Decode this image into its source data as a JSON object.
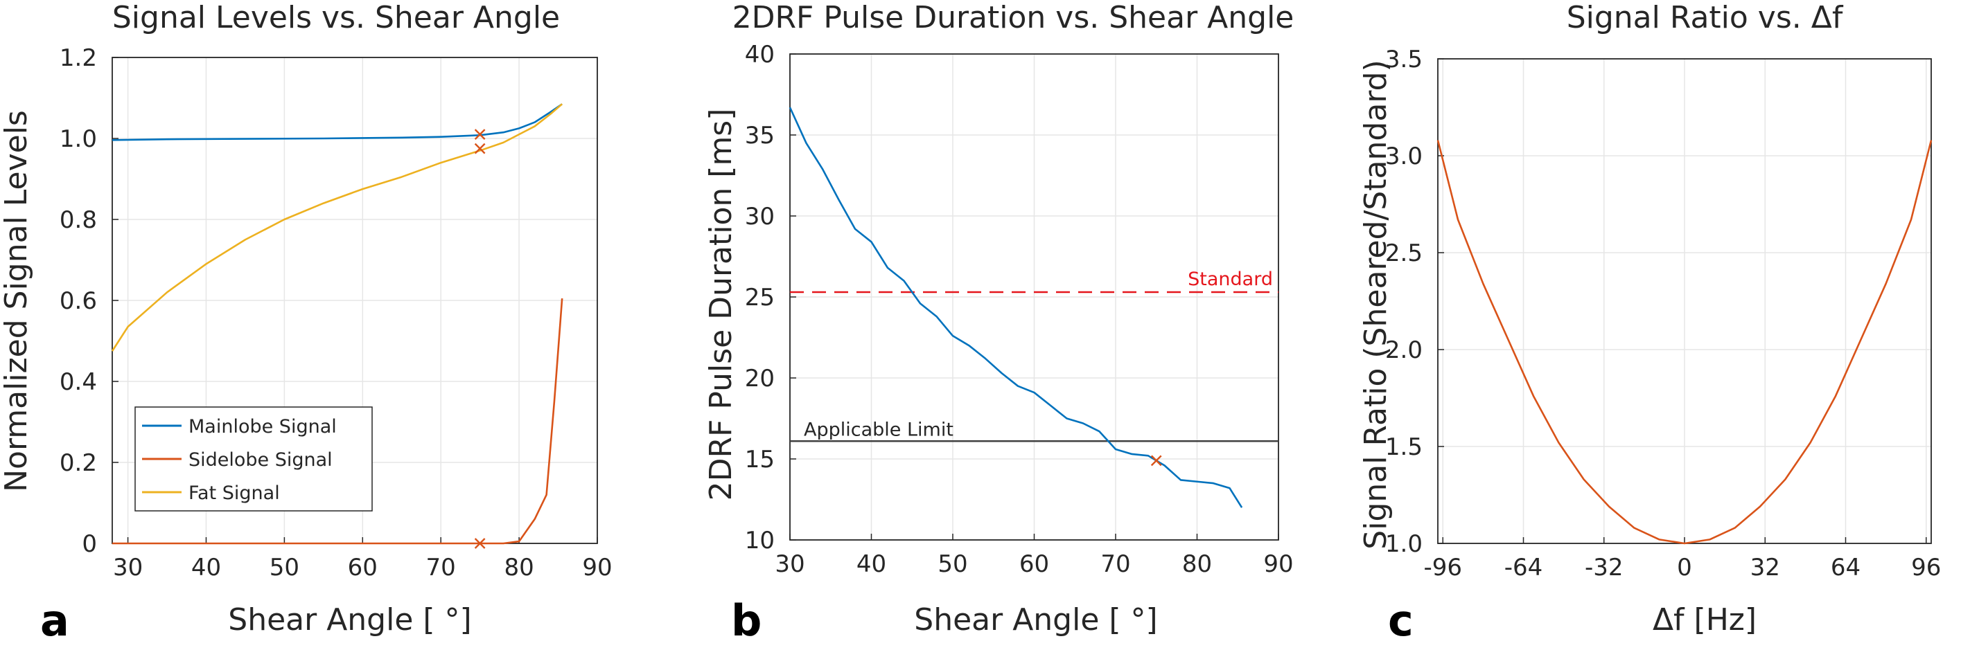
{
  "colors": {
    "blue": "#0072BD",
    "orange": "#D95319",
    "yellow": "#EDB120",
    "red": "#E5161C",
    "grid": "#E6E6E6",
    "axis": "#262626",
    "limit": "#404040"
  },
  "chart_data": [
    {
      "type": "line",
      "panel_letter": "a",
      "title": "Signal Levels vs. Shear Angle",
      "xlabel": "Shear Angle [ °]",
      "ylabel": "Normalized Signal Levels",
      "xlim": [
        28,
        90
      ],
      "ylim": [
        0,
        1.2
      ],
      "xticks": [
        30,
        40,
        50,
        60,
        70,
        80,
        90
      ],
      "yticks": [
        0,
        0.2,
        0.4,
        0.6,
        0.8,
        1.0,
        1.2
      ],
      "ytick_labels": [
        "0",
        "0.2",
        "0.4",
        "0.6",
        "0.8",
        "1.0",
        "1.2"
      ],
      "grid": true,
      "legend": {
        "position": "lower-left",
        "entries": [
          "Mainlobe Signal",
          "Sidelobe Signal",
          "Fat Signal"
        ]
      },
      "series": [
        {
          "name": "Mainlobe Signal",
          "color": "#0072BD",
          "x": [
            28,
            35,
            45,
            55,
            65,
            70,
            75,
            78,
            80,
            82,
            84,
            85.5
          ],
          "y": [
            0.996,
            0.998,
            0.999,
            1.0,
            1.002,
            1.004,
            1.008,
            1.015,
            1.025,
            1.04,
            1.065,
            1.085
          ]
        },
        {
          "name": "Sidelobe Signal",
          "color": "#D95319",
          "x": [
            28,
            40,
            50,
            60,
            70,
            75,
            78,
            80,
            82,
            83.5,
            84.5,
            85.5
          ],
          "y": [
            0,
            0,
            0,
            0,
            0,
            0,
            0,
            0.005,
            0.06,
            0.12,
            0.35,
            0.605
          ]
        },
        {
          "name": "Fat Signal",
          "color": "#EDB120",
          "x": [
            28,
            30,
            35,
            40,
            45,
            50,
            55,
            60,
            65,
            70,
            75,
            78,
            80,
            82,
            84,
            85.5
          ],
          "y": [
            0.475,
            0.535,
            0.62,
            0.69,
            0.75,
            0.8,
            0.84,
            0.875,
            0.905,
            0.94,
            0.97,
            0.99,
            1.01,
            1.03,
            1.06,
            1.085
          ]
        }
      ],
      "markers": [
        {
          "x": 75,
          "y": 1.01,
          "color": "#D95319"
        },
        {
          "x": 75,
          "y": 0.975,
          "color": "#D95319"
        },
        {
          "x": 75,
          "y": 0.0,
          "color": "#D95319"
        }
      ]
    },
    {
      "type": "line",
      "panel_letter": "b",
      "title": "2DRF Pulse Duration vs. Shear Angle",
      "xlabel": "Shear Angle [ °]",
      "ylabel": "2DRF Pulse Duration [ms]",
      "xlim": [
        30,
        90
      ],
      "ylim": [
        10,
        40
      ],
      "xticks": [
        30,
        40,
        50,
        60,
        70,
        80,
        90
      ],
      "yticks": [
        10,
        15,
        20,
        25,
        30,
        35,
        40
      ],
      "grid": true,
      "series": [
        {
          "name": "Pulse Duration",
          "color": "#0072BD",
          "x": [
            30,
            32,
            34,
            36,
            38,
            40,
            42,
            44,
            46,
            48,
            50,
            52,
            54,
            56,
            58,
            60,
            62,
            64,
            66,
            68,
            70,
            72,
            74,
            76,
            78,
            80,
            82,
            84,
            85.5
          ],
          "y": [
            36.7,
            34.5,
            32.9,
            31.0,
            29.2,
            28.4,
            26.8,
            26.0,
            24.6,
            23.8,
            22.6,
            22.0,
            21.2,
            20.3,
            19.5,
            19.1,
            18.3,
            17.5,
            17.2,
            16.7,
            15.6,
            15.3,
            15.2,
            14.6,
            13.7,
            13.6,
            13.5,
            13.2,
            12.0
          ]
        }
      ],
      "reference_lines": [
        {
          "label": "Standard",
          "y": 25.3,
          "style": "dashed",
          "color": "#E5161C"
        },
        {
          "label": "Applicable Limit",
          "y": 16.1,
          "style": "solid",
          "color": "#404040"
        }
      ],
      "markers": [
        {
          "x": 75,
          "y": 14.9,
          "color": "#D95319"
        }
      ]
    },
    {
      "type": "line",
      "panel_letter": "c",
      "title": "Signal Ratio vs. Δf",
      "xlabel": "Δf [Hz]",
      "ylabel": "Signal Ratio (Sheared/Standard)",
      "xlim": [
        -98,
        98
      ],
      "ylim": [
        1.0,
        3.5
      ],
      "xticks": [
        -96,
        -64,
        -32,
        0,
        32,
        64,
        96
      ],
      "yticks": [
        1.0,
        1.5,
        2.0,
        2.5,
        3.0,
        3.5
      ],
      "ytick_labels": [
        "1.0",
        "1.5",
        "2.0",
        "2.5",
        "3.0",
        "3.5"
      ],
      "grid": true,
      "series": [
        {
          "name": "Signal Ratio",
          "color": "#D95319",
          "x": [
            -98,
            -90,
            -80,
            -70,
            -60,
            -50,
            -40,
            -30,
            -20,
            -10,
            0,
            10,
            20,
            30,
            40,
            50,
            60,
            70,
            80,
            90,
            98
          ],
          "y": [
            3.08,
            2.67,
            2.34,
            2.05,
            1.76,
            1.52,
            1.33,
            1.19,
            1.08,
            1.02,
            1.0,
            1.02,
            1.08,
            1.19,
            1.33,
            1.52,
            1.76,
            2.05,
            2.34,
            2.67,
            3.08
          ]
        }
      ]
    }
  ]
}
